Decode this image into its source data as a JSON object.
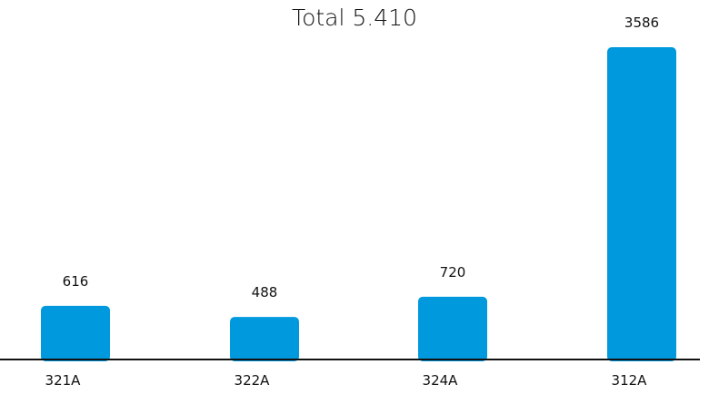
{
  "chart_data": {
    "type": "bar",
    "title": "Total 5.410",
    "categories": [
      "321A",
      "322A",
      "324A",
      "312A"
    ],
    "values": [
      616,
      488,
      720,
      3586
    ],
    "value_labels": [
      "616",
      "488",
      "720",
      "3586"
    ],
    "ylim": [
      0,
      3586
    ],
    "grid": false,
    "legend": "none",
    "bar_color": "#0099DD",
    "axis_color": "#111111"
  }
}
